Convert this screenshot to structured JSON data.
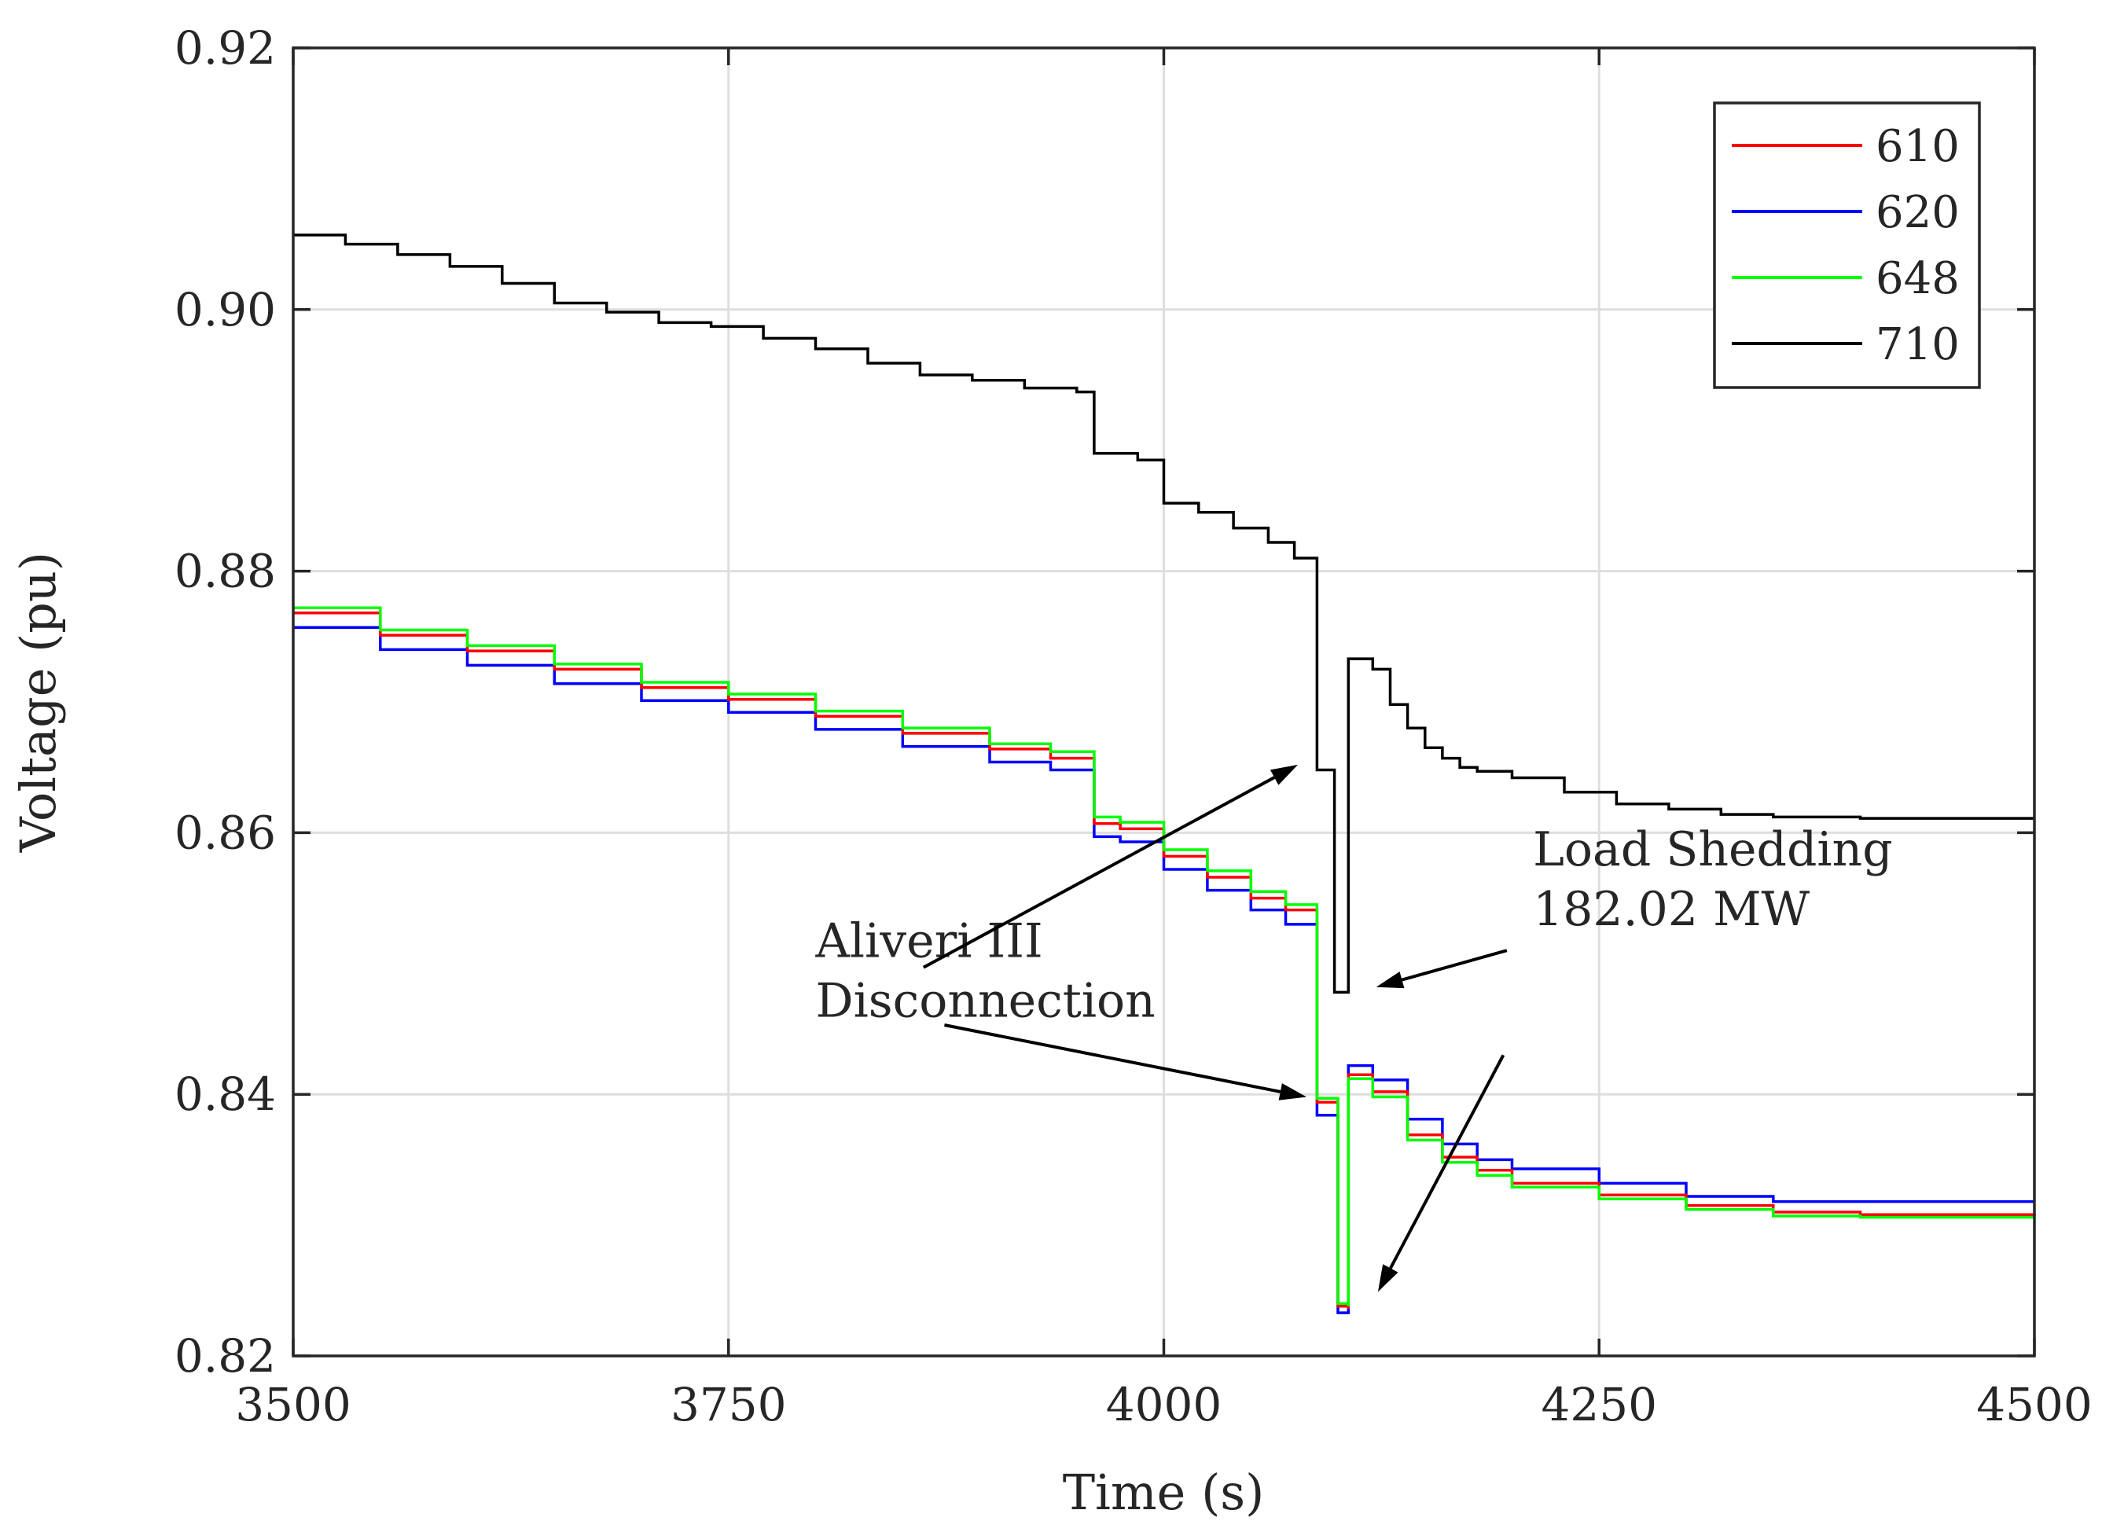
{
  "chart_data": {
    "type": "line",
    "title": "",
    "xlabel": "Time (s)",
    "ylabel": "Voltage (pu)",
    "xlim": [
      3500,
      4500
    ],
    "ylim": [
      0.82,
      0.92
    ],
    "xticks": [
      3500,
      3750,
      4000,
      4250,
      4500
    ],
    "xtick_labels": [
      "3500",
      "3750",
      "4000",
      "4250",
      "4500"
    ],
    "yticks": [
      0.82,
      0.84,
      0.86,
      0.88,
      0.9,
      0.92
    ],
    "ytick_labels": [
      "0.82",
      "0.84",
      "0.86",
      "0.88",
      "0.90",
      "0.92"
    ],
    "grid": true,
    "legend_position": "top-right",
    "series": [
      {
        "name": "610",
        "color": "#ff0000",
        "x": [
          3500,
          3550,
          3600,
          3650,
          3700,
          3750,
          3800,
          3850,
          3900,
          3935,
          3960,
          3960,
          3975,
          4000,
          4025,
          4050,
          4070,
          4088,
          4088,
          4100,
          4100,
          4106,
          4106,
          4120,
          4140,
          4160,
          4180,
          4200,
          4250,
          4300,
          4350,
          4400,
          4500
        ],
        "values": [
          0.8768,
          0.8751,
          0.8739,
          0.8725,
          0.8711,
          0.8702,
          0.8689,
          0.8676,
          0.8664,
          0.8657,
          0.865,
          0.8607,
          0.8603,
          0.8582,
          0.8566,
          0.855,
          0.8541,
          0.8529,
          0.8394,
          0.8391,
          0.8238,
          0.8236,
          0.8415,
          0.8402,
          0.8369,
          0.8352,
          0.8342,
          0.8332,
          0.8323,
          0.8315,
          0.831,
          0.8308,
          0.8307
        ]
      },
      {
        "name": "620",
        "color": "#0000ff",
        "x": [
          3500,
          3550,
          3600,
          3650,
          3700,
          3750,
          3800,
          3850,
          3900,
          3935,
          3960,
          3960,
          3975,
          4000,
          4025,
          4050,
          4070,
          4088,
          4088,
          4100,
          4100,
          4106,
          4106,
          4120,
          4140,
          4160,
          4180,
          4200,
          4250,
          4300,
          4350,
          4400,
          4500
        ],
        "values": [
          0.8757,
          0.874,
          0.8728,
          0.8714,
          0.8701,
          0.8692,
          0.8679,
          0.8666,
          0.8654,
          0.8648,
          0.864,
          0.8597,
          0.8593,
          0.8572,
          0.8556,
          0.8541,
          0.853,
          0.8519,
          0.8384,
          0.8381,
          0.8233,
          0.8233,
          0.8422,
          0.8411,
          0.8381,
          0.8362,
          0.835,
          0.8343,
          0.8332,
          0.8322,
          0.8318,
          0.8318,
          0.8318
        ]
      },
      {
        "name": "648",
        "color": "#00ff00",
        "x": [
          3500,
          3550,
          3600,
          3650,
          3700,
          3750,
          3800,
          3850,
          3900,
          3935,
          3960,
          3960,
          3975,
          4000,
          4025,
          4050,
          4070,
          4088,
          4088,
          4100,
          4100,
          4106,
          4106,
          4120,
          4140,
          4160,
          4180,
          4200,
          4250,
          4300,
          4350,
          4400,
          4500
        ],
        "values": [
          0.8772,
          0.8755,
          0.8743,
          0.8729,
          0.8715,
          0.8706,
          0.8693,
          0.868,
          0.8668,
          0.8662,
          0.8654,
          0.8612,
          0.8608,
          0.8587,
          0.8571,
          0.8555,
          0.8545,
          0.8533,
          0.8397,
          0.8394,
          0.824,
          0.8238,
          0.8412,
          0.8398,
          0.8365,
          0.8348,
          0.8338,
          0.8329,
          0.832,
          0.8312,
          0.8307,
          0.8306,
          0.8306
        ]
      },
      {
        "name": "710",
        "color": "#000000",
        "x": [
          3500,
          3530,
          3560,
          3590,
          3620,
          3650,
          3680,
          3710,
          3740,
          3770,
          3800,
          3830,
          3860,
          3890,
          3920,
          3950,
          3960,
          3960,
          3985,
          4000,
          4000,
          4020,
          4040,
          4060,
          4075,
          4088,
          4088,
          4098,
          4098,
          4106,
          4106,
          4120,
          4130,
          4140,
          4150,
          4160,
          4170,
          4180,
          4200,
          4230,
          4260,
          4290,
          4320,
          4350,
          4400,
          4500
        ],
        "values": [
          0.9057,
          0.905,
          0.9042,
          0.9033,
          0.902,
          0.9005,
          0.8998,
          0.899,
          0.8987,
          0.8978,
          0.897,
          0.8959,
          0.895,
          0.8946,
          0.894,
          0.8937,
          0.893,
          0.889,
          0.8885,
          0.8876,
          0.8852,
          0.8845,
          0.8833,
          0.8822,
          0.881,
          0.8792,
          0.8648,
          0.8645,
          0.8478,
          0.8478,
          0.8733,
          0.8725,
          0.8698,
          0.868,
          0.8665,
          0.8657,
          0.865,
          0.8647,
          0.8642,
          0.8631,
          0.8622,
          0.8618,
          0.8614,
          0.8612,
          0.8611,
          0.8611
        ]
      }
    ],
    "annotations": [
      {
        "lines": [
          "Aliveri III",
          "Disconnection"
        ],
        "text_at": [
          3800,
          0.8505
        ],
        "arrows": [
          {
            "from": [
              3862,
              0.8497
            ],
            "to": [
              4077,
              0.8652
            ]
          },
          {
            "from": [
              3874,
              0.8453
            ],
            "to": [
              4082,
              0.8398
            ]
          }
        ]
      },
      {
        "lines": [
          "Load Shedding",
          "182.02 MW"
        ],
        "text_at": [
          4212,
          0.8575
        ],
        "arrows": [
          {
            "from": [
              4197,
              0.851
            ],
            "to": [
              4122,
              0.8482
            ]
          },
          {
            "from": [
              4195,
              0.843
            ],
            "to": [
              4123,
              0.8249
            ]
          }
        ]
      }
    ]
  }
}
